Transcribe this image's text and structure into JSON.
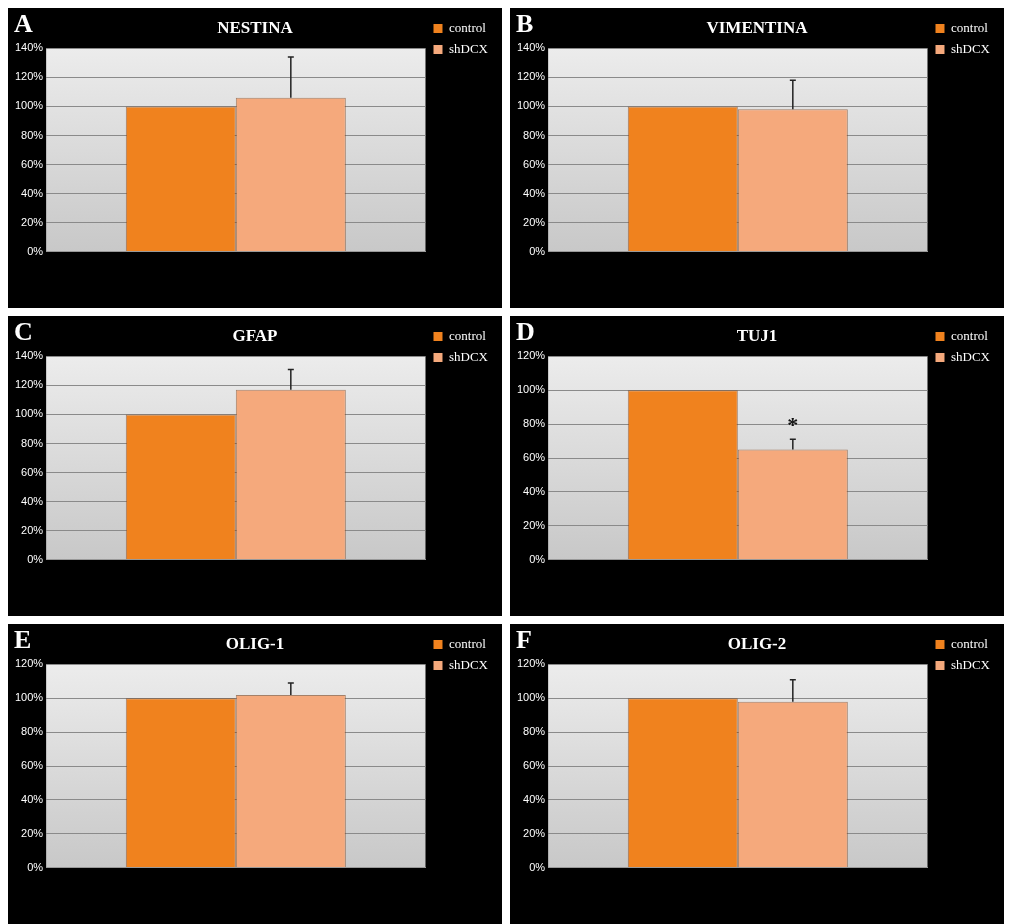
{
  "chart_data": [
    {
      "type": "bar",
      "title": "NESTINA",
      "annotations": [
        "A"
      ],
      "categories": [
        null
      ],
      "series": [
        {
          "name": "control",
          "color": "#f0821e",
          "values": [
            100
          ]
        },
        {
          "name": "shDCX",
          "color": "#f5a97c",
          "values": [
            106
          ],
          "errors": [
            [
              106,
              134
            ]
          ]
        }
      ],
      "ylim": [
        0,
        140
      ],
      "yticks": [
        {
          "value": 0,
          "label": "0%"
        },
        {
          "value": 20,
          "label": "20%"
        },
        {
          "value": 40,
          "label": "40%"
        },
        {
          "value": 60,
          "label": "60%"
        },
        {
          "value": 80,
          "label": "80%"
        },
        {
          "value": 100,
          "label": "100%"
        },
        {
          "value": 120,
          "label": "120%"
        },
        {
          "value": 140,
          "label": "140%"
        }
      ],
      "grid": "y",
      "legend": "right"
    },
    {
      "type": "bar",
      "title": "VIMENTINA",
      "annotations": [
        "B"
      ],
      "categories": [
        null
      ],
      "series": [
        {
          "name": "control",
          "color": "#f0821e",
          "values": [
            100
          ]
        },
        {
          "name": "shDCX",
          "color": "#f5a97c",
          "values": [
            98
          ],
          "errors": [
            [
              98,
              118
            ]
          ]
        }
      ],
      "ylim": [
        0,
        140
      ],
      "yticks": [
        {
          "value": 0,
          "label": "0%"
        },
        {
          "value": 20,
          "label": "20%"
        },
        {
          "value": 40,
          "label": "40%"
        },
        {
          "value": 60,
          "label": "60%"
        },
        {
          "value": 80,
          "label": "80%"
        },
        {
          "value": 100,
          "label": "100%"
        },
        {
          "value": 120,
          "label": "120%"
        },
        {
          "value": 140,
          "label": "140%"
        }
      ],
      "grid": "y",
      "legend": "right"
    },
    {
      "type": "bar",
      "title": "GFAP",
      "annotations": [
        "C"
      ],
      "categories": [
        null
      ],
      "series": [
        {
          "name": "control",
          "color": "#f0821e",
          "values": [
            100
          ]
        },
        {
          "name": "shDCX",
          "color": "#f5a97c",
          "values": [
            117
          ],
          "errors": [
            [
              117,
              131
            ]
          ]
        }
      ],
      "ylim": [
        0,
        140
      ],
      "yticks": [
        {
          "value": 0,
          "label": "0%"
        },
        {
          "value": 20,
          "label": "20%"
        },
        {
          "value": 40,
          "label": "40%"
        },
        {
          "value": 60,
          "label": "60%"
        },
        {
          "value": 80,
          "label": "80%"
        },
        {
          "value": 100,
          "label": "100%"
        },
        {
          "value": 120,
          "label": "120%"
        },
        {
          "value": 140,
          "label": "140%"
        }
      ],
      "grid": "y",
      "legend": "right"
    },
    {
      "type": "bar",
      "title": "TUJ1",
      "annotations": [
        "D",
        "*"
      ],
      "categories": [
        null
      ],
      "series": [
        {
          "name": "control",
          "color": "#f0821e",
          "values": [
            100
          ]
        },
        {
          "name": "shDCX",
          "color": "#f5a97c",
          "values": [
            65
          ],
          "errors": [
            [
              65,
              71
            ]
          ]
        }
      ],
      "ylim": [
        0,
        120
      ],
      "yticks": [
        {
          "value": 0,
          "label": "0%"
        },
        {
          "value": 20,
          "label": "20%"
        },
        {
          "value": 40,
          "label": "40%"
        },
        {
          "value": 60,
          "label": "60%"
        },
        {
          "value": 80,
          "label": "80%"
        },
        {
          "value": 100,
          "label": "100%"
        },
        {
          "value": 120,
          "label": "120%"
        }
      ],
      "grid": "y",
      "legend": "right"
    },
    {
      "type": "bar",
      "title": "OLIG-1",
      "annotations": [
        "E"
      ],
      "categories": [
        null
      ],
      "series": [
        {
          "name": "control",
          "color": "#f0821e",
          "values": [
            100
          ]
        },
        {
          "name": "shDCX",
          "color": "#f5a97c",
          "values": [
            102
          ],
          "errors": [
            [
              102,
              109
            ]
          ]
        }
      ],
      "ylim": [
        0,
        120
      ],
      "yticks": [
        {
          "value": 0,
          "label": "0%"
        },
        {
          "value": 20,
          "label": "20%"
        },
        {
          "value": 40,
          "label": "40%"
        },
        {
          "value": 60,
          "label": "60%"
        },
        {
          "value": 80,
          "label": "80%"
        },
        {
          "value": 100,
          "label": "100%"
        },
        {
          "value": 120,
          "label": "120%"
        }
      ],
      "grid": "y",
      "legend": "right"
    },
    {
      "type": "bar",
      "title": "OLIG-2",
      "annotations": [
        "F"
      ],
      "categories": [
        null
      ],
      "series": [
        {
          "name": "control",
          "color": "#f0821e",
          "values": [
            100
          ]
        },
        {
          "name": "shDCX",
          "color": "#f5a97c",
          "values": [
            98
          ],
          "errors": [
            [
              98,
              111
            ]
          ]
        }
      ],
      "ylim": [
        0,
        120
      ],
      "yticks": [
        {
          "value": 0,
          "label": "0%"
        },
        {
          "value": 20,
          "label": "20%"
        },
        {
          "value": 40,
          "label": "40%"
        },
        {
          "value": 60,
          "label": "60%"
        },
        {
          "value": 80,
          "label": "80%"
        },
        {
          "value": 100,
          "label": "100%"
        },
        {
          "value": 120,
          "label": "120%"
        }
      ],
      "grid": "y",
      "legend": "right"
    }
  ]
}
